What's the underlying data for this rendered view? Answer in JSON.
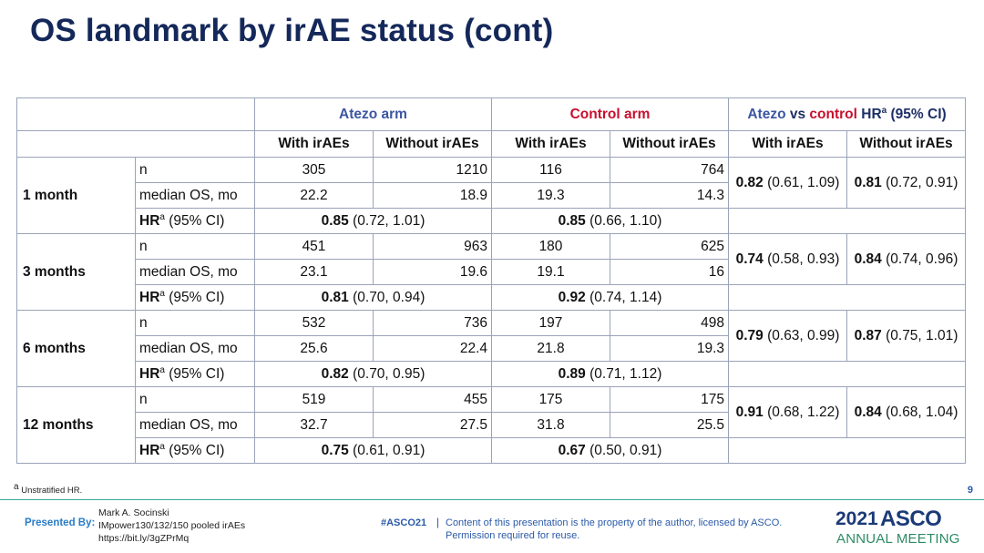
{
  "title": "OS landmark by irAE status (cont)",
  "header": {
    "atezo_arm": "Atezo arm",
    "control_arm": "Control arm",
    "hr_atezo": "Atezo",
    "hr_vs": " vs ",
    "hr_control": "control",
    "hr_hr": " HR",
    "hr_sup": "a",
    "hr_ci": " (95% CI)",
    "with": "With irAEs",
    "without": "Without irAEs"
  },
  "row_labels": {
    "n": "n",
    "median": "median OS, mo",
    "hr": "HR",
    "hr_sup": "a",
    "hr_ci": " (95% CI)"
  },
  "landmarks": [
    {
      "label": "1 month",
      "n": [
        "305",
        "1210",
        "116",
        "764"
      ],
      "median": [
        "22.2",
        "18.9",
        "19.3",
        "14.3"
      ],
      "atezo_hr": "0.85",
      "atezo_ci": " (0.72, 1.01)",
      "control_hr": "0.85",
      "control_ci": " (0.66, 1.10)",
      "vs_with_hr": "0.82",
      "vs_with_ci": " (0.61, 1.09)",
      "vs_without_hr": "0.81",
      "vs_without_ci": " (0.72, 0.91)"
    },
    {
      "label": "3 months",
      "n": [
        "451",
        "963",
        "180",
        "625"
      ],
      "median": [
        "23.1",
        "19.6",
        "19.1",
        "16"
      ],
      "atezo_hr": "0.81",
      "atezo_ci": " (0.70, 0.94)",
      "control_hr": "0.92",
      "control_ci": " (0.74, 1.14)",
      "vs_with_hr": "0.74",
      "vs_with_ci": " (0.58, 0.93)",
      "vs_without_hr": "0.84",
      "vs_without_ci": " (0.74, 0.96)"
    },
    {
      "label": "6 months",
      "n": [
        "532",
        "736",
        "197",
        "498"
      ],
      "median": [
        "25.6",
        "22.4",
        "21.8",
        "19.3"
      ],
      "atezo_hr": "0.82",
      "atezo_ci": " (0.70, 0.95)",
      "control_hr": "0.89",
      "control_ci": " (0.71, 1.12)",
      "vs_with_hr": "0.79",
      "vs_with_ci": " (0.63, 0.99)",
      "vs_without_hr": "0.87",
      "vs_without_ci": " (0.75, 1.01)"
    },
    {
      "label": "12 months",
      "n": [
        "519",
        "455",
        "175",
        "175"
      ],
      "median": [
        "32.7",
        "27.5",
        "31.8",
        "25.5"
      ],
      "atezo_hr": "0.75",
      "atezo_ci": " (0.61, 0.91)",
      "control_hr": "0.67",
      "control_ci": " (0.50, 0.91)",
      "vs_with_hr": "0.91",
      "vs_with_ci": " (0.68, 1.22)",
      "vs_without_hr": "0.84",
      "vs_without_ci": " (0.68, 1.04)"
    }
  ],
  "footnote_sup": "a",
  "footnote": " Unstratified HR.",
  "page_number": "9",
  "footer": {
    "presented_by": "Presented By:",
    "presenter_lines": [
      "Mark A. Socinski",
      "IMpower130/132/150 pooled irAEs",
      "https://bit.ly/3gZPrMq"
    ],
    "hashtag": "#ASCO21",
    "separator": "|",
    "disclaimer_lines": [
      "Content of this presentation is the property of the author, licensed by ASCO.",
      "Permission required for reuse."
    ],
    "logo_year": "2021",
    "logo_name": "ASCO",
    "logo_sub": "ANNUAL MEETING"
  },
  "colors": {
    "title": "#14285a",
    "atezo": "#3b56a2",
    "control": "#c8102e",
    "border": "#9aa3b8",
    "divider": "#38a9a0",
    "asco_sub": "#2e8a66"
  }
}
